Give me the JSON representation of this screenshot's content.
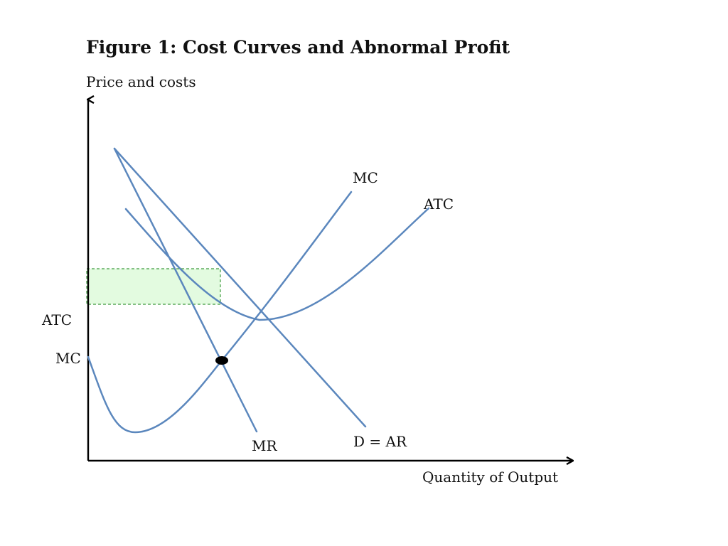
{
  "figure": {
    "title": "Figure 1: Cost Curves and Abnormal Profit",
    "y_axis_label": "Price and costs",
    "x_axis_label": "Quantity of Output"
  },
  "colors": {
    "curve": "#5b87bd",
    "axis": "#000000",
    "profit_fill": "#e3fbe0",
    "profit_border": "#3f9b3f",
    "equilibrium_point": "#000000"
  },
  "curves": {
    "mc": {
      "label": "MC"
    },
    "atc": {
      "label": "ATC"
    },
    "demand": {
      "label": "D = AR"
    },
    "mr": {
      "label": "MR"
    }
  },
  "axis_levels": {
    "atc": "ATC",
    "mc": "MC"
  },
  "profit_area": {
    "description_visible": false
  }
}
